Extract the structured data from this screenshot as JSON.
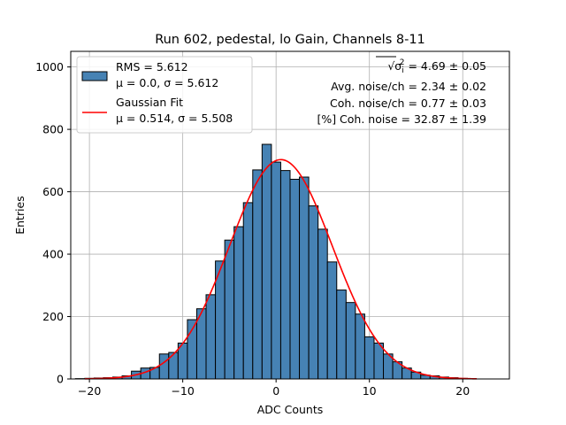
{
  "chart_data": {
    "type": "bar",
    "title": "Run 602, pedestal, lo Gain, Channels 8-11",
    "xlabel": "ADC Counts",
    "ylabel": "Entries",
    "xlim": [
      -22,
      25
    ],
    "ylim": [
      0,
      1050
    ],
    "xticks": [
      -20,
      -10,
      0,
      10,
      20
    ],
    "yticks": [
      0,
      200,
      400,
      600,
      800,
      1000
    ],
    "grid": true,
    "legend_position": "top-left",
    "histogram": {
      "name": "RMS = 5.612",
      "name_line2": "μ = 0.0, σ = 5.612",
      "color": "#4682b4",
      "edgecolor": "#000000",
      "bin_edges": [
        -21.5,
        -20.5,
        -19.5,
        -18.5,
        -17.5,
        -16.5,
        -15.5,
        -14.5,
        -13.5,
        -12.5,
        -11.5,
        -10.5,
        -9.5,
        -8.5,
        -7.5,
        -6.5,
        -5.5,
        -4.5,
        -3.5,
        -2.5,
        -1.5,
        -0.5,
        0.5,
        1.5,
        2.5,
        3.5,
        4.5,
        5.5,
        6.5,
        7.5,
        8.5,
        9.5,
        10.5,
        11.5,
        12.5,
        13.5,
        14.5,
        15.5,
        16.5,
        17.5,
        18.5,
        19.5,
        20.5
      ],
      "counts": [
        1,
        2,
        3,
        4,
        6,
        10,
        25,
        35,
        37,
        80,
        85,
        115,
        190,
        225,
        270,
        378,
        445,
        488,
        565,
        670,
        752,
        695,
        668,
        640,
        647,
        555,
        480,
        375,
        285,
        245,
        208,
        135,
        115,
        80,
        55,
        35,
        22,
        12,
        10,
        6,
        4,
        2
      ]
    },
    "fit": {
      "name": "Gaussian Fit",
      "name_line2": "μ = 0.514, σ = 5.508",
      "color": "#ff0000",
      "mu": 0.514,
      "sigma": 5.508,
      "peak": 703,
      "x_range": [
        -20.5,
        21.5
      ]
    },
    "annotations": [
      {
        "prefix": "√σ",
        "sub": "i",
        "sup": "2",
        "text": " = 4.69 ± 0.05"
      },
      {
        "text": "Avg. noise/ch = 2.34 ± 0.02"
      },
      {
        "text": "Coh. noise/ch = 0.77 ± 0.03"
      },
      {
        "text": "[%] Coh. noise = 32.87 ± 1.39"
      }
    ]
  }
}
